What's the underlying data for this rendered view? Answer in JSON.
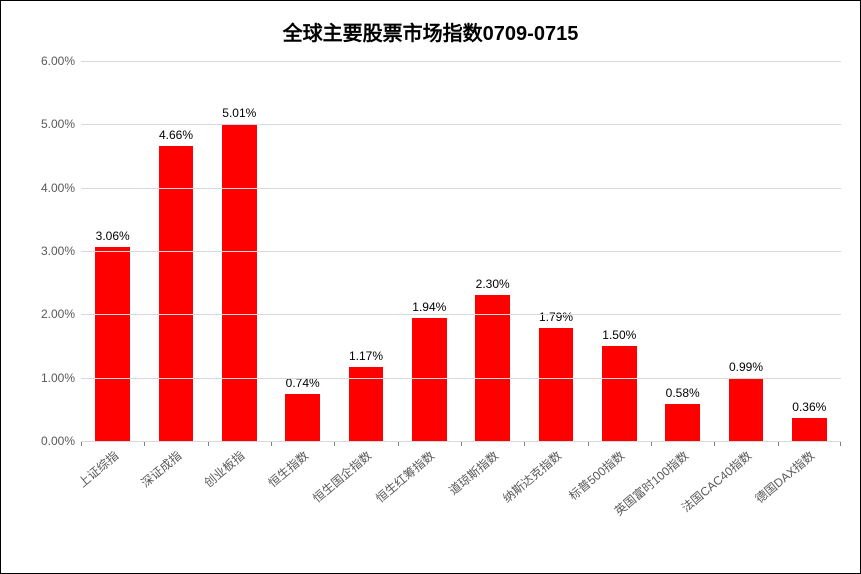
{
  "chart": {
    "type": "bar",
    "title": "全球主要股票市场指数0709-0715",
    "title_fontsize": 20,
    "title_fontweight": "bold",
    "categories": [
      "上证综指",
      "深证成指",
      "创业板指",
      "恒生指数",
      "恒生国企指数",
      "恒生红筹指数",
      "道琼斯指数",
      "纳斯达克指数",
      "标普500指数",
      "英国富时100指数",
      "法国CAC40指数",
      "德国DAX指数"
    ],
    "values": [
      3.06,
      4.66,
      5.01,
      0.74,
      1.17,
      1.94,
      2.3,
      1.79,
      1.5,
      0.58,
      0.99,
      0.36
    ],
    "value_labels": [
      "3.06%",
      "4.66%",
      "5.01%",
      "0.74%",
      "1.17%",
      "1.94%",
      "2.30%",
      "1.79%",
      "1.50%",
      "0.58%",
      "0.99%",
      "0.36%"
    ],
    "bar_color": "#ff0000",
    "background_color": "#ffffff",
    "border_color": "#000000",
    "grid_color": "#d9d9d9",
    "axis_label_color": "#595959",
    "value_label_color": "#000000",
    "ylim": [
      0,
      6
    ],
    "ytick_step": 1,
    "ytick_labels": [
      "0.00%",
      "1.00%",
      "2.00%",
      "3.00%",
      "4.00%",
      "5.00%",
      "6.00%"
    ],
    "ytick_values": [
      0,
      1,
      2,
      3,
      4,
      5,
      6
    ],
    "bar_width_ratio": 0.55,
    "xlabel_rotation_deg": -40,
    "axis_fontsize": 12,
    "value_label_fontsize": 12
  }
}
